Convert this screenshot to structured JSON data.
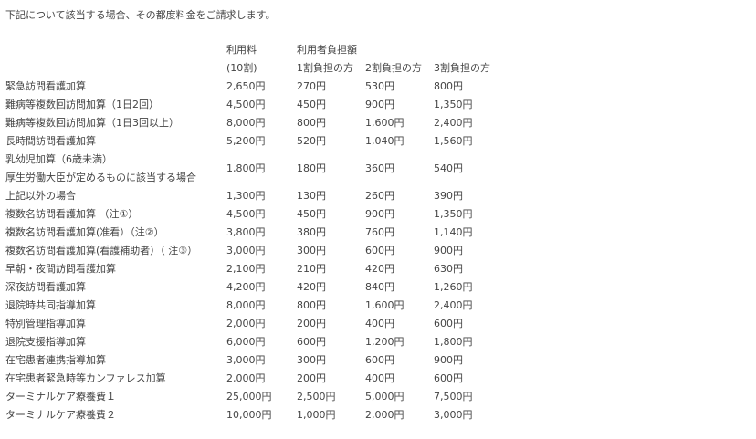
{
  "intro": "下記について該当する場合、その都度料金をご請求します。",
  "header": {
    "fee": "利用料",
    "fee_sub": "(10割)",
    "burden": "利用者負担額",
    "b1": "1割負担の方",
    "b2": "2割負担の方",
    "b3": "3割負担の方"
  },
  "rows": [
    {
      "name": "緊急訪問看護加算",
      "fee": "2,650円",
      "b1": "270円",
      "b2": "530円",
      "b3": "800円"
    },
    {
      "name": "難病等複数回訪問加算（1日2回）",
      "fee": "4,500円",
      "b1": "450円",
      "b2": "900円",
      "b3": "1,350円"
    },
    {
      "name": "難病等複数回訪問加算（1日3回以上）",
      "fee": "8,000円",
      "b1": "800円",
      "b2": "1,600円",
      "b3": "2,400円"
    },
    {
      "name": "長時間訪問看護加算",
      "fee": "5,200円",
      "b1": "520円",
      "b2": "1,040円",
      "b3": "1,560円"
    },
    {
      "name": "乳幼児加算（6歳未満）",
      "name2": "厚生労働大臣が定めるものに該当する場合",
      "fee": "1,800円",
      "b1": "180円",
      "b2": "360円",
      "b3": "540円"
    },
    {
      "name": "上記以外の場合",
      "fee": "1,300円",
      "b1": "130円",
      "b2": "260円",
      "b3": "390円"
    },
    {
      "name": "複数名訪問看護加算 （注①）",
      "fee": "4,500円",
      "b1": "450円",
      "b2": "900円",
      "b3": "1,350円"
    },
    {
      "name": "複数名訪問看護加算(准看）（注②）",
      "fee": "3,800円",
      "b1": "380円",
      "b2": "760円",
      "b3": "1,140円"
    },
    {
      "name": "複数名訪問看護加算(看護補助者）（ 注③）",
      "fee": "3,000円",
      "b1": "300円",
      "b2": "600円",
      "b3": "900円"
    },
    {
      "name": "早朝・夜間訪問看護加算",
      "fee": "2,100円",
      "b1": "210円",
      "b2": "420円",
      "b3": "630円"
    },
    {
      "name": "深夜訪問看護加算",
      "fee": "4,200円",
      "b1": "420円",
      "b2": "840円",
      "b3": "1,260円"
    },
    {
      "name": "退院時共同指導加算",
      "fee": "8,000円",
      "b1": "800円",
      "b2": "1,600円",
      "b3": "2,400円"
    },
    {
      "name": "特別管理指導加算",
      "fee": "2,000円",
      "b1": "200円",
      "b2": "400円",
      "b3": "600円"
    },
    {
      "name": "退院支援指導加算",
      "fee": "6,000円",
      "b1": "600円",
      "b2": "1,200円",
      "b3": "1,800円"
    },
    {
      "name": "在宅患者連携指導加算",
      "fee": "3,000円",
      "b1": "300円",
      "b2": "600円",
      "b3": "900円"
    },
    {
      "name": "在宅患者緊急時等カンファレス加算",
      "fee": "2,000円",
      "b1": "200円",
      "b2": "400円",
      "b3": "600円"
    },
    {
      "name": "ターミナルケア療養費１",
      "fee": "25,000円",
      "b1": "2,500円",
      "b2": "5,000円",
      "b3": "7,500円"
    },
    {
      "name": "ターミナルケア療養費２",
      "fee": "10,000円",
      "b1": "1,000円",
      "b2": "2,000円",
      "b3": "3,000円"
    }
  ]
}
